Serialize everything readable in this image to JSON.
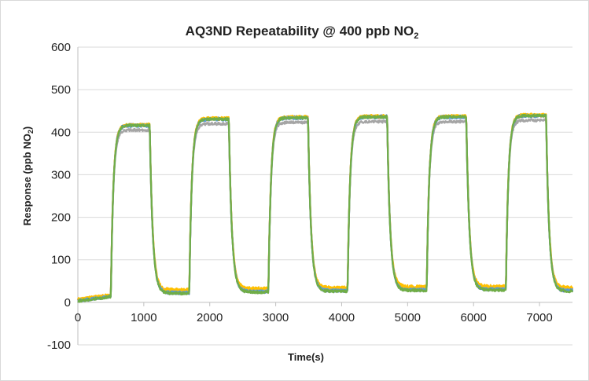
{
  "chart_data": {
    "type": "line",
    "title": "AQ3ND Repeatability @ 400 ppb NO",
    "title_subscript": "2",
    "xlabel": "Time(s)",
    "ylabel": "Response (ppb NO",
    "ylabel_subscript": "2",
    "ylabel_suffix": ")",
    "xlim": [
      0,
      7500
    ],
    "ylim": [
      -100,
      600
    ],
    "x_ticks": [
      "0",
      "1000",
      "2000",
      "3000",
      "4000",
      "5000",
      "6000",
      "7000"
    ],
    "x_tick_values": [
      0,
      1000,
      2000,
      3000,
      4000,
      5000,
      6000,
      7000
    ],
    "y_ticks": [
      "-100",
      "0",
      "100",
      "200",
      "300",
      "400",
      "500",
      "600"
    ],
    "y_tick_values": [
      -100,
      0,
      100,
      200,
      300,
      400,
      500,
      600
    ],
    "grid": "horizontal",
    "legend": "none",
    "baseline_start": 5,
    "baseline_before_first_pulse": 15,
    "exposure_periods": [
      {
        "on": 500,
        "off": 1090,
        "peak": 415,
        "baseline_after": 25
      },
      {
        "on": 1690,
        "off": 2290,
        "peak": 430,
        "baseline_after": 28
      },
      {
        "on": 2890,
        "off": 3490,
        "peak": 433,
        "baseline_after": 30
      },
      {
        "on": 4090,
        "off": 4690,
        "peak": 435,
        "baseline_after": 32
      },
      {
        "on": 5290,
        "off": 5890,
        "peak": 435,
        "baseline_after": 33
      },
      {
        "on": 6490,
        "off": 7100,
        "peak": 438,
        "baseline_after": 30
      }
    ],
    "series": [
      {
        "color": "#4472c4",
        "peak_offset": 2,
        "baseline_offset": -3
      },
      {
        "color": "#ed7d31",
        "peak_offset": 1,
        "baseline_offset": 2
      },
      {
        "color": "#a5a5a5",
        "peak_offset": -10,
        "baseline_offset": 0
      },
      {
        "color": "#ffc000",
        "peak_offset": 3,
        "baseline_offset": 5
      },
      {
        "color": "#5b9bd5",
        "peak_offset": 0,
        "baseline_offset": -2
      },
      {
        "color": "#70ad47",
        "peak_offset": 1,
        "baseline_offset": -4
      }
    ]
  }
}
